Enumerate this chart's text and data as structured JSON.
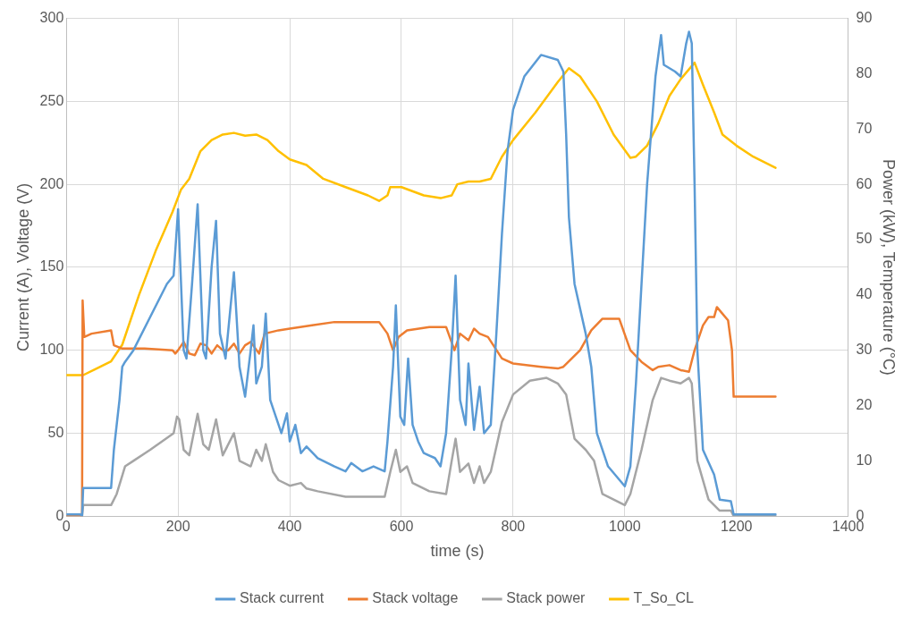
{
  "chart_data": {
    "type": "line",
    "xlabel": "time (s)",
    "ylabel": "Current (A), Voltage (V)",
    "y2label": "Power (kW), Temperature (°C)",
    "xlim": [
      0,
      1400
    ],
    "xticks": [
      0,
      200,
      400,
      600,
      800,
      1000,
      1200,
      1400
    ],
    "ylim": [
      0,
      300
    ],
    "yticks": [
      0,
      50,
      100,
      150,
      200,
      250,
      300
    ],
    "y2lim": [
      0,
      90
    ],
    "y2ticks": [
      0,
      10,
      20,
      30,
      40,
      50,
      60,
      70,
      80,
      90
    ],
    "grid": true,
    "legend": "bottom",
    "marker": "none",
    "line_style": "solid",
    "series": [
      {
        "name": "Stack current",
        "color": "#5b9bd5",
        "x": [
          0,
          25,
          28,
          30,
          80,
          85,
          95,
          100,
          105,
          120,
          150,
          180,
          192,
          200,
          210,
          215,
          225,
          235,
          245,
          250,
          260,
          268,
          275,
          285,
          295,
          300,
          310,
          320,
          330,
          335,
          340,
          350,
          357,
          365,
          375,
          385,
          395,
          400,
          410,
          420,
          430,
          450,
          480,
          500,
          510,
          530,
          550,
          570,
          575,
          585,
          590,
          598,
          605,
          612,
          620,
          630,
          640,
          660,
          670,
          680,
          690,
          697,
          705,
          715,
          720,
          730,
          740,
          748,
          760,
          770,
          780,
          790,
          800,
          820,
          850,
          880,
          890,
          895,
          900,
          910,
          930,
          940,
          950,
          970,
          1000,
          1010,
          1020,
          1040,
          1055,
          1065,
          1070,
          1090,
          1100,
          1110,
          1115,
          1120,
          1125,
          1130,
          1140,
          1160,
          1170,
          1190,
          1195,
          1270
        ],
        "values": [
          1,
          1,
          0,
          17,
          17,
          40,
          70,
          90,
          93,
          100,
          120,
          140,
          145,
          185,
          100,
          95,
          140,
          188,
          100,
          95,
          150,
          178,
          110,
          95,
          130,
          147,
          90,
          72,
          100,
          115,
          80,
          90,
          122,
          70,
          60,
          50,
          62,
          45,
          55,
          38,
          42,
          35,
          30,
          27,
          32,
          27,
          30,
          27,
          45,
          90,
          127,
          60,
          55,
          95,
          55,
          45,
          38,
          35,
          30,
          50,
          100,
          145,
          70,
          55,
          92,
          52,
          78,
          50,
          55,
          110,
          170,
          220,
          245,
          265,
          278,
          275,
          268,
          230,
          180,
          140,
          110,
          90,
          50,
          30,
          18,
          30,
          80,
          200,
          265,
          290,
          272,
          268,
          265,
          285,
          292,
          285,
          200,
          100,
          40,
          25,
          10,
          9,
          1,
          1
        ]
      },
      {
        "name": "Stack voltage",
        "color": "#ed7d31",
        "x": [
          0,
          28,
          29,
          32,
          45,
          80,
          85,
          100,
          140,
          190,
          195,
          200,
          210,
          220,
          230,
          240,
          250,
          260,
          270,
          280,
          290,
          300,
          310,
          320,
          330,
          345,
          355,
          380,
          400,
          440,
          480,
          520,
          560,
          575,
          585,
          595,
          610,
          650,
          680,
          695,
          705,
          720,
          730,
          740,
          755,
          780,
          800,
          850,
          880,
          890,
          920,
          940,
          960,
          990,
          1010,
          1030,
          1050,
          1060,
          1080,
          1100,
          1115,
          1125,
          1140,
          1150,
          1160,
          1165,
          1175,
          1185,
          1192,
          1195,
          1270
        ],
        "values": [
          0,
          0,
          130,
          108,
          110,
          112,
          103,
          101,
          101,
          100,
          98,
          100,
          105,
          98,
          97,
          104,
          103,
          98,
          103,
          100,
          100,
          104,
          98,
          103,
          105,
          98,
          110,
          112,
          113,
          115,
          117,
          117,
          117,
          110,
          100,
          108,
          112,
          114,
          114,
          100,
          110,
          106,
          113,
          110,
          108,
          95,
          92,
          90,
          89,
          90,
          100,
          112,
          119,
          119,
          100,
          93,
          88,
          90,
          91,
          88,
          87,
          100,
          115,
          120,
          120,
          126,
          122,
          118,
          100,
          72,
          72
        ]
      },
      {
        "name": "Stack power",
        "color": "#a5a5a5",
        "axis": "y2",
        "x": [
          0,
          28,
          30,
          80,
          90,
          105,
          120,
          150,
          192,
          198,
          202,
          210,
          220,
          235,
          245,
          255,
          268,
          280,
          300,
          310,
          330,
          340,
          350,
          357,
          370,
          380,
          400,
          420,
          430,
          450,
          500,
          550,
          570,
          580,
          590,
          598,
          610,
          620,
          650,
          680,
          690,
          697,
          705,
          720,
          730,
          740,
          748,
          760,
          780,
          800,
          830,
          860,
          880,
          895,
          910,
          930,
          945,
          960,
          1000,
          1010,
          1030,
          1050,
          1065,
          1080,
          1100,
          1115,
          1120,
          1130,
          1150,
          1170,
          1190,
          1195,
          1270
        ],
        "values": [
          0,
          0,
          2,
          2,
          4,
          9,
          10,
          12,
          15,
          18,
          17.5,
          12,
          11,
          18.5,
          13,
          12,
          17.5,
          11,
          15,
          10,
          9,
          12,
          10,
          13,
          8,
          6.5,
          5.5,
          6,
          5,
          4.5,
          3.5,
          3.5,
          3.5,
          8,
          12,
          8,
          9,
          6,
          4.5,
          4,
          10,
          14,
          8,
          9.5,
          6,
          9,
          6,
          8,
          17,
          22,
          24.5,
          25,
          24,
          22,
          14,
          12,
          10,
          4,
          2,
          4,
          12,
          21,
          25,
          24.5,
          24,
          25,
          24,
          10,
          3,
          1,
          1,
          0,
          0
        ]
      },
      {
        "name": "T_So_CL",
        "color": "#ffc000",
        "axis": "y2",
        "x": [
          0,
          30,
          50,
          80,
          100,
          130,
          160,
          190,
          205,
          220,
          240,
          260,
          280,
          300,
          320,
          340,
          360,
          380,
          400,
          430,
          460,
          500,
          540,
          560,
          575,
          580,
          600,
          640,
          670,
          690,
          700,
          720,
          740,
          760,
          780,
          800,
          840,
          880,
          900,
          920,
          950,
          980,
          1010,
          1020,
          1040,
          1060,
          1080,
          1100,
          1125,
          1140,
          1160,
          1175,
          1200,
          1230,
          1270
        ],
        "values": [
          25.5,
          25.5,
          26.5,
          28,
          31,
          40,
          48,
          55,
          59,
          61,
          66,
          68,
          69,
          69.3,
          68.8,
          69,
          68,
          66,
          64.5,
          63.5,
          61,
          59.5,
          58,
          57,
          58,
          59.5,
          59.5,
          58,
          57.5,
          58,
          60,
          60.5,
          60.5,
          61,
          65,
          68,
          73,
          78.5,
          81,
          79.5,
          75,
          69,
          64.8,
          65,
          67,
          71,
          76,
          79,
          82,
          78,
          73,
          69,
          67,
          65,
          63
        ]
      }
    ]
  }
}
